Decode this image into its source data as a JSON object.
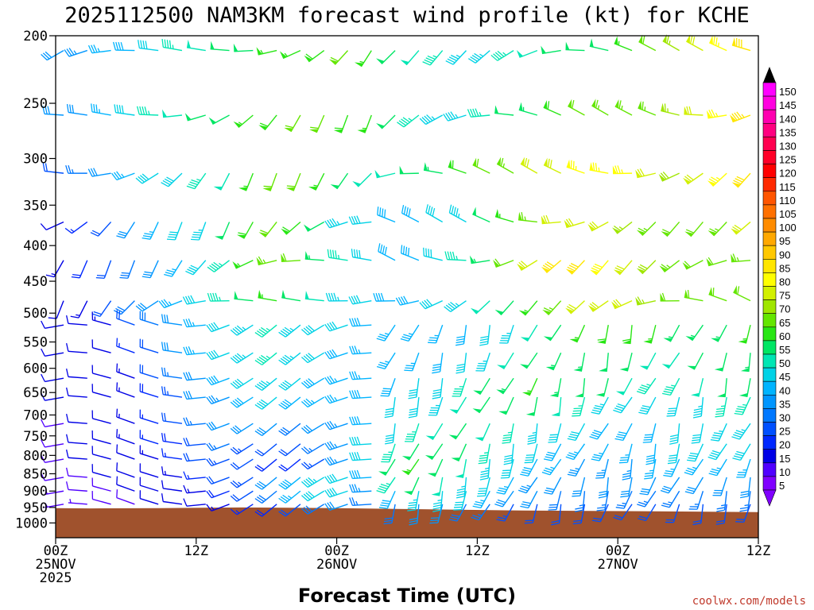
{
  "chart_data": {
    "type": "wind-barb-time-height",
    "title": "2025112500 NAM3KM forecast wind profile (kt) for KCHE",
    "xlabel": "Forecast Time (UTC)",
    "ylabel_units": "hPa",
    "credit": "coolwx.com/models",
    "x_range_hours": [
      0,
      60
    ],
    "x_ticks": [
      {
        "hour": 0,
        "lines": [
          "00Z",
          "25NOV",
          "2025"
        ]
      },
      {
        "hour": 12,
        "lines": [
          "12Z"
        ]
      },
      {
        "hour": 24,
        "lines": [
          "00Z",
          "26NOV"
        ]
      },
      {
        "hour": 36,
        "lines": [
          "12Z"
        ]
      },
      {
        "hour": 48,
        "lines": [
          "00Z",
          "27NOV"
        ]
      },
      {
        "hour": 60,
        "lines": [
          "12Z"
        ]
      }
    ],
    "pressure_range": [
      200,
      1050
    ],
    "pressure_ticks": [
      200,
      250,
      300,
      350,
      400,
      450,
      500,
      550,
      600,
      650,
      700,
      750,
      800,
      850,
      900,
      950,
      1000
    ],
    "colorbar": {
      "levels": [
        150,
        145,
        140,
        135,
        130,
        125,
        120,
        115,
        110,
        105,
        100,
        95,
        90,
        85,
        80,
        75,
        70,
        65,
        60,
        55,
        50,
        45,
        40,
        35,
        30,
        25,
        20,
        15,
        10,
        5
      ],
      "colors": [
        "#ff00ff",
        "#ff00e0",
        "#ff00b0",
        "#ff0080",
        "#ff0050",
        "#ff0028",
        "#ff0000",
        "#ff2a00",
        "#ff5500",
        "#ff7000",
        "#ff8c00",
        "#ffa800",
        "#ffc800",
        "#ffe600",
        "#ffff00",
        "#d2f000",
        "#a0e600",
        "#64e600",
        "#28e614",
        "#00e664",
        "#00e6b4",
        "#00d2e6",
        "#00b4ff",
        "#0096ff",
        "#0078ff",
        "#0050ff",
        "#0028ff",
        "#0000e6",
        "#5000ff",
        "#8000ff"
      ],
      "top_arrow_color": "#000000",
      "bottom_arrow_color": "#8000ff"
    },
    "surface": {
      "color": "#a0522d",
      "points": [
        [
          0,
          952
        ],
        [
          3,
          953
        ],
        [
          9,
          952
        ],
        [
          16,
          950
        ],
        [
          24,
          952
        ],
        [
          30,
          955
        ],
        [
          40,
          960
        ],
        [
          50,
          962
        ],
        [
          60,
          965
        ]
      ]
    },
    "rows": [
      {
        "p": 210,
        "speeds": [
          32,
          33,
          35,
          38,
          42,
          45,
          48,
          50,
          52,
          55,
          57,
          58,
          60,
          56,
          52,
          48,
          46,
          44,
          44,
          46,
          48,
          50,
          50,
          52,
          56,
          60,
          66,
          72,
          76,
          80
        ]
      },
      {
        "p": 260,
        "speeds": [
          30,
          32,
          35,
          40,
          45,
          48,
          50,
          52,
          55,
          58,
          60,
          60,
          58,
          55,
          50,
          46,
          44,
          44,
          46,
          50,
          54,
          58,
          62,
          64,
          64,
          64,
          66,
          70,
          76,
          84
        ]
      },
      {
        "p": 315,
        "speeds": [
          22,
          26,
          30,
          35,
          40,
          42,
          45,
          48,
          55,
          62,
          60,
          55,
          50,
          48,
          48,
          50,
          54,
          58,
          60,
          64,
          70,
          72,
          76,
          76,
          75,
          70,
          68,
          70,
          75,
          82
        ]
      },
      {
        "p": 370,
        "speeds": [
          12,
          16,
          22,
          30,
          35,
          40,
          44,
          50,
          58,
          62,
          58,
          50,
          44,
          40,
          38,
          38,
          40,
          44,
          50,
          56,
          64,
          72,
          72,
          70,
          66,
          64,
          62,
          62,
          64,
          70
        ]
      },
      {
        "p": 420,
        "speeds": [
          14,
          18,
          22,
          28,
          32,
          36,
          40,
          46,
          56,
          64,
          60,
          54,
          46,
          40,
          38,
          38,
          40,
          46,
          54,
          62,
          72,
          80,
          82,
          78,
          72,
          68,
          64,
          62,
          62,
          64
        ]
      },
      {
        "p": 480,
        "speeds": [
          12,
          14,
          20,
          28,
          32,
          36,
          40,
          46,
          52,
          56,
          52,
          48,
          44,
          40,
          38,
          38,
          40,
          44,
          48,
          52,
          56,
          64,
          70,
          72,
          70,
          66,
          62,
          60,
          60,
          62
        ]
      },
      {
        "p": 520,
        "speeds": [
          10,
          10,
          14,
          20,
          28,
          32,
          36,
          40,
          44,
          46,
          44,
          42,
          40,
          38,
          36,
          36,
          36,
          38,
          40,
          44,
          48,
          52,
          56,
          58,
          58,
          56,
          54,
          54,
          54,
          56
        ]
      },
      {
        "p": 570,
        "speeds": [
          10,
          10,
          12,
          16,
          22,
          30,
          36,
          40,
          44,
          46,
          44,
          40,
          38,
          36,
          36,
          36,
          38,
          40,
          44,
          48,
          52,
          54,
          54,
          52,
          50,
          48,
          48,
          50,
          52,
          54
        ]
      },
      {
        "p": 620,
        "speeds": [
          10,
          10,
          12,
          14,
          20,
          26,
          32,
          38,
          42,
          44,
          40,
          38,
          36,
          36,
          38,
          40,
          42,
          46,
          50,
          54,
          56,
          54,
          52,
          50,
          48,
          46,
          46,
          48,
          50,
          50
        ]
      },
      {
        "p": 660,
        "speeds": [
          10,
          10,
          12,
          14,
          18,
          24,
          30,
          34,
          38,
          40,
          38,
          36,
          36,
          38,
          40,
          42,
          44,
          48,
          52,
          52,
          50,
          48,
          46,
          44,
          42,
          42,
          42,
          44,
          46,
          46
        ]
      },
      {
        "p": 720,
        "speeds": [
          8,
          10,
          12,
          14,
          16,
          20,
          26,
          30,
          32,
          30,
          28,
          30,
          34,
          38,
          42,
          46,
          48,
          50,
          48,
          46,
          44,
          42,
          40,
          38,
          38,
          38,
          40,
          42,
          44,
          44
        ]
      },
      {
        "p": 770,
        "speeds": [
          8,
          10,
          12,
          14,
          16,
          18,
          22,
          26,
          24,
          20,
          20,
          26,
          34,
          40,
          46,
          50,
          52,
          50,
          46,
          42,
          40,
          38,
          36,
          36,
          36,
          38,
          40,
          40,
          40,
          40
        ]
      },
      {
        "p": 810,
        "speeds": [
          8,
          10,
          12,
          12,
          14,
          16,
          20,
          24,
          22,
          18,
          18,
          24,
          34,
          42,
          50,
          56,
          52,
          48,
          44,
          40,
          38,
          36,
          34,
          34,
          34,
          36,
          36,
          36,
          36,
          36
        ]
      },
      {
        "p": 860,
        "speeds": [
          8,
          8,
          10,
          10,
          12,
          14,
          16,
          20,
          24,
          30,
          38,
          44,
          40,
          38,
          46,
          52,
          48,
          44,
          40,
          36,
          34,
          32,
          30,
          30,
          30,
          30,
          30,
          30,
          30,
          30
        ]
      },
      {
        "p": 900,
        "speeds": [
          6,
          8,
          8,
          10,
          10,
          12,
          14,
          18,
          22,
          28,
          36,
          42,
          40,
          34,
          38,
          44,
          44,
          40,
          36,
          32,
          30,
          28,
          26,
          26,
          26,
          26,
          26,
          26,
          26,
          26
        ]
      },
      {
        "p": 940,
        "speeds": [
          6,
          6,
          8,
          8,
          10,
          10,
          12,
          14,
          16,
          18,
          22,
          28,
          30,
          26,
          28,
          30,
          30,
          28,
          26,
          24,
          22,
          20,
          20,
          20,
          20,
          20,
          20,
          20,
          20,
          20
        ]
      }
    ]
  }
}
